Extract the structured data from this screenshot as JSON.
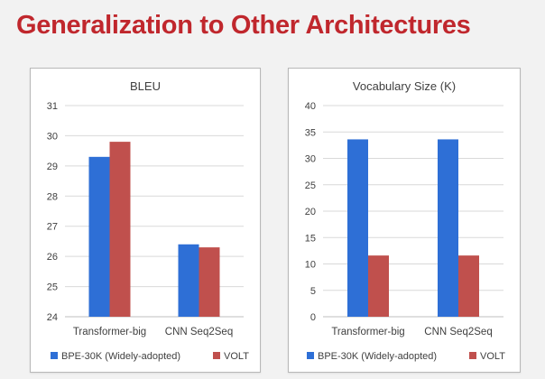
{
  "slide": {
    "title": "Generalization to Other Architectures"
  },
  "colors": {
    "bpe": "#2e6fd6",
    "volt": "#c0504d",
    "title": "#c0272d",
    "gridline": "#d9d9d9"
  },
  "chart_data": [
    {
      "type": "bar",
      "title": "BLEU",
      "categories": [
        "Transformer-big",
        "CNN Seq2Seq"
      ],
      "series": [
        {
          "name": "BPE-30K (Widely-adopted)",
          "values": [
            29.3,
            26.4
          ]
        },
        {
          "name": "VOLT",
          "values": [
            29.8,
            26.3
          ]
        }
      ],
      "yticks": [
        24,
        25,
        26,
        27,
        28,
        29,
        30,
        31
      ],
      "ylim": [
        24,
        31
      ],
      "grid": true,
      "legend_position": "bottom"
    },
    {
      "type": "bar",
      "title": "Vocabulary Size (K)",
      "categories": [
        "Transformer-big",
        "CNN Seq2Seq"
      ],
      "series": [
        {
          "name": "BPE-30K (Widely-adopted)",
          "values": [
            33.6,
            33.6
          ]
        },
        {
          "name": "VOLT",
          "values": [
            11.6,
            11.6
          ]
        }
      ],
      "yticks": [
        0,
        5,
        10,
        15,
        20,
        25,
        30,
        35,
        40
      ],
      "ylim": [
        0,
        40
      ],
      "grid": true,
      "legend_position": "bottom"
    }
  ]
}
